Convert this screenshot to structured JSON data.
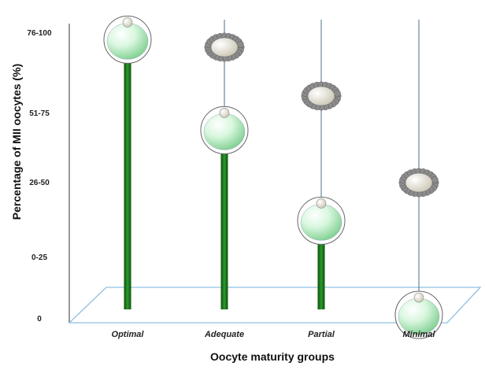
{
  "chart_data": {
    "type": "lollipop",
    "xlabel": "Oocyte maturity groups",
    "ylabel": "Percentage of MII oocytes (%)",
    "y_categories": [
      "0",
      "0-25",
      "26-50",
      "51-75",
      "76-100"
    ],
    "categories": [
      "Optimal",
      "Adequate",
      "Partial",
      "Minimal"
    ],
    "series": [
      {
        "values": [
          76,
          51,
          26,
          0
        ]
      }
    ],
    "ylim": [
      0,
      100
    ],
    "grid": false,
    "legend": "none",
    "colors": {
      "stem": "#1f7a1f",
      "stem_dark": "#0d4f0d",
      "oocyte": "#d6f5dc",
      "cumulus": "#8a8a8a",
      "floor": "#8fc0e0"
    }
  }
}
